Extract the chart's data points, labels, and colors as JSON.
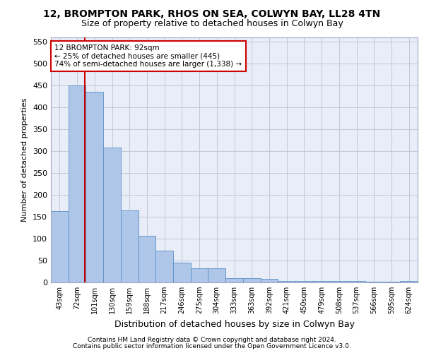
{
  "title_line1": "12, BROMPTON PARK, RHOS ON SEA, COLWYN BAY, LL28 4TN",
  "title_line2": "Size of property relative to detached houses in Colwyn Bay",
  "xlabel": "Distribution of detached houses by size in Colwyn Bay",
  "ylabel": "Number of detached properties",
  "footer_line1": "Contains HM Land Registry data © Crown copyright and database right 2024.",
  "footer_line2": "Contains public sector information licensed under the Open Government Licence v3.0.",
  "categories": [
    "43sqm",
    "72sqm",
    "101sqm",
    "130sqm",
    "159sqm",
    "188sqm",
    "217sqm",
    "246sqm",
    "275sqm",
    "304sqm",
    "333sqm",
    "363sqm",
    "392sqm",
    "421sqm",
    "450sqm",
    "479sqm",
    "508sqm",
    "537sqm",
    "566sqm",
    "595sqm",
    "624sqm"
  ],
  "values": [
    163,
    450,
    435,
    307,
    165,
    107,
    73,
    45,
    32,
    32,
    10,
    10,
    8,
    4,
    4,
    3,
    3,
    3,
    2,
    2,
    4
  ],
  "bar_color": "#aec6e8",
  "bar_edge_color": "#5b8fc7",
  "marker_line_color": "#cc0000",
  "annotation_text": "12 BROMPTON PARK: 92sqm\n← 25% of detached houses are smaller (445)\n74% of semi-detached houses are larger (1,338) →",
  "annotation_box_color": "#cc0000",
  "ylim": [
    0,
    560
  ],
  "yticks": [
    0,
    50,
    100,
    150,
    200,
    250,
    300,
    350,
    400,
    450,
    500,
    550
  ],
  "bg_color": "#ffffff",
  "axes_bg_color": "#e8edf8",
  "grid_color": "#c0c8d8",
  "title_fontsize": 10,
  "subtitle_fontsize": 9,
  "ylabel_fontsize": 8,
  "xlabel_fontsize": 9
}
